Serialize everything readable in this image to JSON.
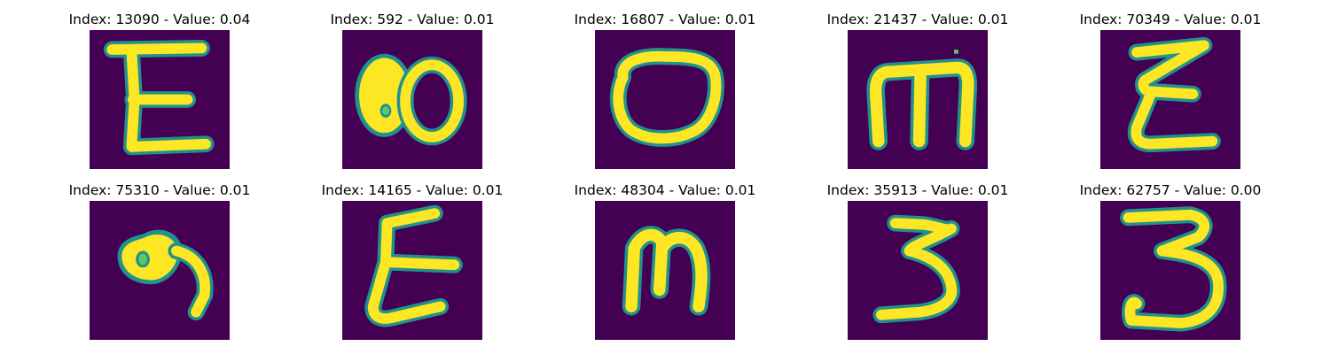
{
  "colors": {
    "background": "#440154",
    "stroke": "#fde725",
    "edge": "#21918c",
    "edge_soft": "#3b528b",
    "edge_light": "#5ec962"
  },
  "panels": [
    {
      "title": "Index: 13090 - Value: 0.04",
      "glyph": "E"
    },
    {
      "title": "Index: 592 - Value: 0.01",
      "glyph": "80"
    },
    {
      "title": "Index: 16807 - Value: 0.01",
      "glyph": "O"
    },
    {
      "title": "Index: 21437 - Value: 0.01",
      "glyph": "m"
    },
    {
      "title": "Index: 70349 - Value: 0.01",
      "glyph": "E"
    },
    {
      "title": "Index: 75310 - Value: 0.01",
      "glyph": "9"
    },
    {
      "title": "Index: 14165 - Value: 0.01",
      "glyph": "E"
    },
    {
      "title": "Index: 48304 - Value: 0.01",
      "glyph": "m"
    },
    {
      "title": "Index: 35913 - Value: 0.01",
      "glyph": "3"
    },
    {
      "title": "Index: 62757 - Value: 0.00",
      "glyph": "3"
    }
  ]
}
